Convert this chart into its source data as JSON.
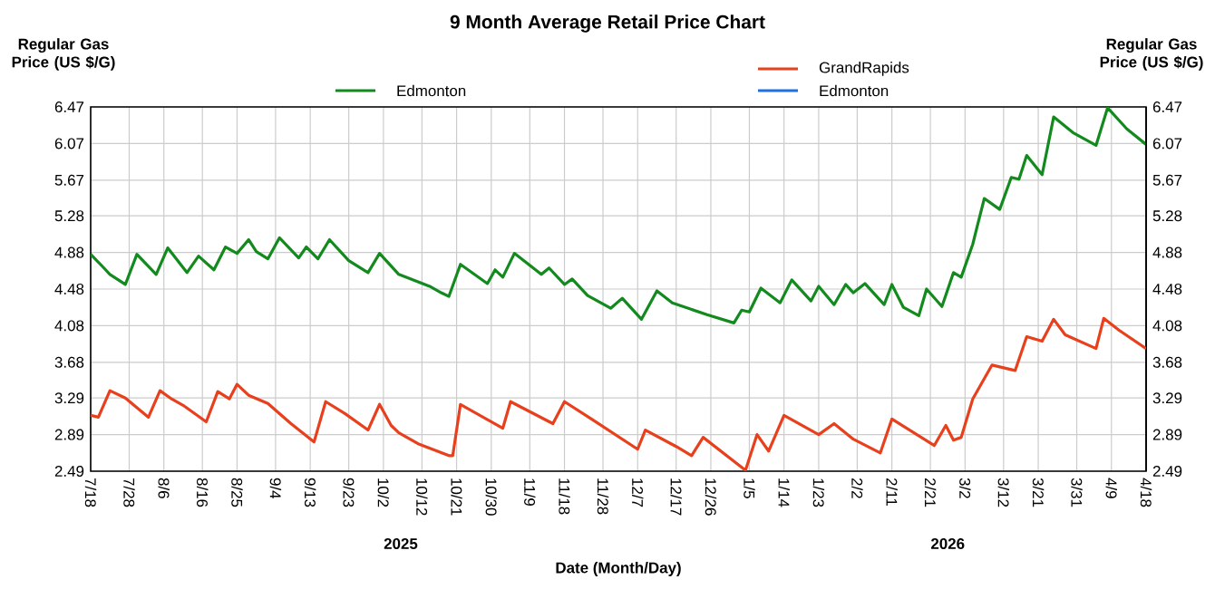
{
  "chart_data": {
    "type": "line",
    "title": "9 Month Average Retail Price Chart",
    "xlabel": "Date (Month/Day)",
    "ylabel": "Regular Gas Price (US $/G)",
    "y2label": "Regular Gas Price (US $/G)",
    "xlim": [
      "2025-07-18",
      "2026-04-18"
    ],
    "xticks": [
      {
        "value": "2025-07-18",
        "label": "7/18"
      },
      {
        "value": "2025-07-28",
        "label": "7/28"
      },
      {
        "value": "2025-08-06",
        "label": "8/6"
      },
      {
        "value": "2025-08-16",
        "label": "8/16"
      },
      {
        "value": "2025-08-25",
        "label": "8/25"
      },
      {
        "value": "2025-09-04",
        "label": "9/4"
      },
      {
        "value": "2025-09-13",
        "label": "9/13"
      },
      {
        "value": "2025-09-23",
        "label": "9/23"
      },
      {
        "value": "2025-10-02",
        "label": "10/2"
      },
      {
        "value": "2025-10-12",
        "label": "10/12"
      },
      {
        "value": "2025-10-21",
        "label": "10/21"
      },
      {
        "value": "2025-10-30",
        "label": "10/30"
      },
      {
        "value": "2025-11-09",
        "label": "11/9"
      },
      {
        "value": "2025-11-18",
        "label": "11/18"
      },
      {
        "value": "2025-11-28",
        "label": "11/28"
      },
      {
        "value": "2025-12-07",
        "label": "12/7"
      },
      {
        "value": "2025-12-17",
        "label": "12/17"
      },
      {
        "value": "2025-12-26",
        "label": "12/26"
      },
      {
        "value": "2026-01-05",
        "label": "1/5"
      },
      {
        "value": "2026-01-14",
        "label": "1/14"
      },
      {
        "value": "2026-01-23",
        "label": "1/23"
      },
      {
        "value": "2026-02-02",
        "label": "2/2"
      },
      {
        "value": "2026-02-11",
        "label": "2/11"
      },
      {
        "value": "2026-02-21",
        "label": "2/21"
      },
      {
        "value": "2026-03-02",
        "label": "3/2"
      },
      {
        "value": "2026-03-12",
        "label": "3/12"
      },
      {
        "value": "2026-03-21",
        "label": "3/21"
      },
      {
        "value": "2026-03-31",
        "label": "3/31"
      },
      {
        "value": "2026-04-09",
        "label": "4/9"
      },
      {
        "value": "2026-04-18",
        "label": "4/18"
      }
    ],
    "ylim": [
      2.49,
      6.47
    ],
    "yticks": [
      2.49,
      2.89,
      3.29,
      3.68,
      4.08,
      4.48,
      4.88,
      5.28,
      5.67,
      6.07,
      6.47
    ],
    "y2lim": [
      2.49,
      6.47
    ],
    "y2ticks": [
      2.49,
      2.89,
      3.29,
      3.68,
      4.08,
      4.48,
      4.88,
      5.28,
      5.67,
      6.07,
      6.47
    ],
    "grid": true,
    "legend": "top",
    "marker": "none",
    "line_style": "solid",
    "annotations": [
      "2025",
      "2026"
    ],
    "series": [
      {
        "name": "Edmonton",
        "color": "#138a1e",
        "axis": "y",
        "x": [
          "2025-07-18",
          "2025-07-21",
          "2025-07-23",
          "2025-07-27",
          "2025-07-30",
          "2025-08-04",
          "2025-08-07",
          "2025-08-12",
          "2025-08-15",
          "2025-08-19",
          "2025-08-22",
          "2025-08-25",
          "2025-08-28",
          "2025-08-30",
          "2025-09-02",
          "2025-09-05",
          "2025-09-10",
          "2025-09-12",
          "2025-09-15",
          "2025-09-18",
          "2025-09-23",
          "2025-09-28",
          "2025-10-01",
          "2025-10-06",
          "2025-10-14",
          "2025-10-17",
          "2025-10-19",
          "2025-10-22",
          "2025-10-29",
          "2025-10-31",
          "2025-11-02",
          "2025-11-05",
          "2025-11-12",
          "2025-11-14",
          "2025-11-18",
          "2025-11-20",
          "2025-11-24",
          "2025-11-30",
          "2025-12-03",
          "2025-12-08",
          "2025-12-12",
          "2025-12-16",
          "2025-12-25",
          "2026-01-01",
          "2026-01-03",
          "2026-01-05",
          "2026-01-08",
          "2026-01-13",
          "2026-01-16",
          "2026-01-21",
          "2026-01-23",
          "2026-01-27",
          "2026-01-30",
          "2026-02-01",
          "2026-02-04",
          "2026-02-09",
          "2026-02-11",
          "2026-02-14",
          "2026-02-18",
          "2026-02-20",
          "2026-02-24",
          "2026-02-27",
          "2026-03-01",
          "2026-03-04",
          "2026-03-05",
          "2026-03-07",
          "2026-03-11",
          "2026-03-14",
          "2026-03-16",
          "2026-03-18",
          "2026-03-22",
          "2026-03-25",
          "2026-03-30",
          "2026-04-05",
          "2026-04-08",
          "2026-04-13",
          "2026-04-18"
        ],
        "values": [
          4.86,
          4.73,
          4.64,
          4.53,
          4.86,
          4.64,
          4.93,
          4.66,
          4.84,
          4.69,
          4.94,
          4.87,
          5.02,
          4.89,
          4.81,
          5.04,
          4.82,
          4.94,
          4.81,
          5.02,
          4.79,
          4.66,
          4.87,
          4.64,
          4.51,
          4.44,
          4.4,
          4.75,
          4.54,
          4.69,
          4.61,
          4.87,
          4.64,
          4.71,
          4.53,
          4.59,
          4.41,
          4.27,
          4.38,
          4.15,
          4.46,
          4.33,
          4.2,
          4.11,
          4.25,
          4.23,
          4.49,
          4.33,
          4.58,
          4.35,
          4.51,
          4.31,
          4.53,
          4.44,
          4.54,
          4.31,
          4.53,
          4.28,
          4.19,
          4.48,
          4.29,
          4.66,
          4.61,
          4.97,
          5.14,
          5.47,
          5.35,
          5.7,
          5.68,
          5.94,
          5.73,
          6.36,
          6.19,
          6.05,
          6.46,
          6.23,
          6.06
        ]
      },
      {
        "name": "GrandRapids",
        "color": "#e8401c",
        "axis": "y2",
        "x": [
          "2025-07-18",
          "2025-07-20",
          "2025-07-23",
          "2025-07-27",
          "2025-08-02",
          "2025-08-05",
          "2025-08-08",
          "2025-08-11",
          "2025-08-17",
          "2025-08-20",
          "2025-08-23",
          "2025-08-25",
          "2025-08-28",
          "2025-09-02",
          "2025-09-08",
          "2025-09-14",
          "2025-09-17",
          "2025-09-22",
          "2025-09-28",
          "2025-10-01",
          "2025-10-04",
          "2025-10-06",
          "2025-10-11",
          "2025-10-19",
          "2025-10-20",
          "2025-10-22",
          "2025-11-02",
          "2025-11-04",
          "2025-11-15",
          "2025-11-18",
          "2025-11-25",
          "2025-12-07",
          "2025-12-09",
          "2025-12-17",
          "2025-12-21",
          "2025-12-24",
          "2026-01-04",
          "2026-01-07",
          "2026-01-10",
          "2026-01-14",
          "2026-01-23",
          "2026-01-27",
          "2026-02-01",
          "2026-02-08",
          "2026-02-11",
          "2026-02-22",
          "2026-02-25",
          "2026-02-27",
          "2026-03-01",
          "2026-03-04",
          "2026-03-09",
          "2026-03-15",
          "2026-03-18",
          "2026-03-22",
          "2026-03-25",
          "2026-03-28",
          "2026-04-05",
          "2026-04-07",
          "2026-04-11",
          "2026-04-18"
        ],
        "values": [
          3.1,
          3.08,
          3.37,
          3.29,
          3.08,
          3.37,
          3.28,
          3.21,
          3.03,
          3.36,
          3.28,
          3.44,
          3.32,
          3.23,
          3.01,
          2.81,
          3.25,
          3.12,
          2.94,
          3.22,
          2.99,
          2.91,
          2.79,
          2.66,
          2.66,
          3.22,
          2.96,
          3.25,
          3.01,
          3.25,
          3.06,
          2.73,
          2.94,
          2.76,
          2.66,
          2.86,
          2.5,
          2.89,
          2.71,
          3.1,
          2.89,
          3.01,
          2.84,
          2.69,
          3.06,
          2.77,
          2.99,
          2.83,
          2.86,
          3.28,
          3.65,
          3.59,
          3.96,
          3.91,
          4.15,
          3.98,
          3.83,
          4.16,
          4.03,
          3.83
        ]
      },
      {
        "name": "Edmonton",
        "color": "#1e6fe6",
        "axis": "y2"
      }
    ]
  }
}
